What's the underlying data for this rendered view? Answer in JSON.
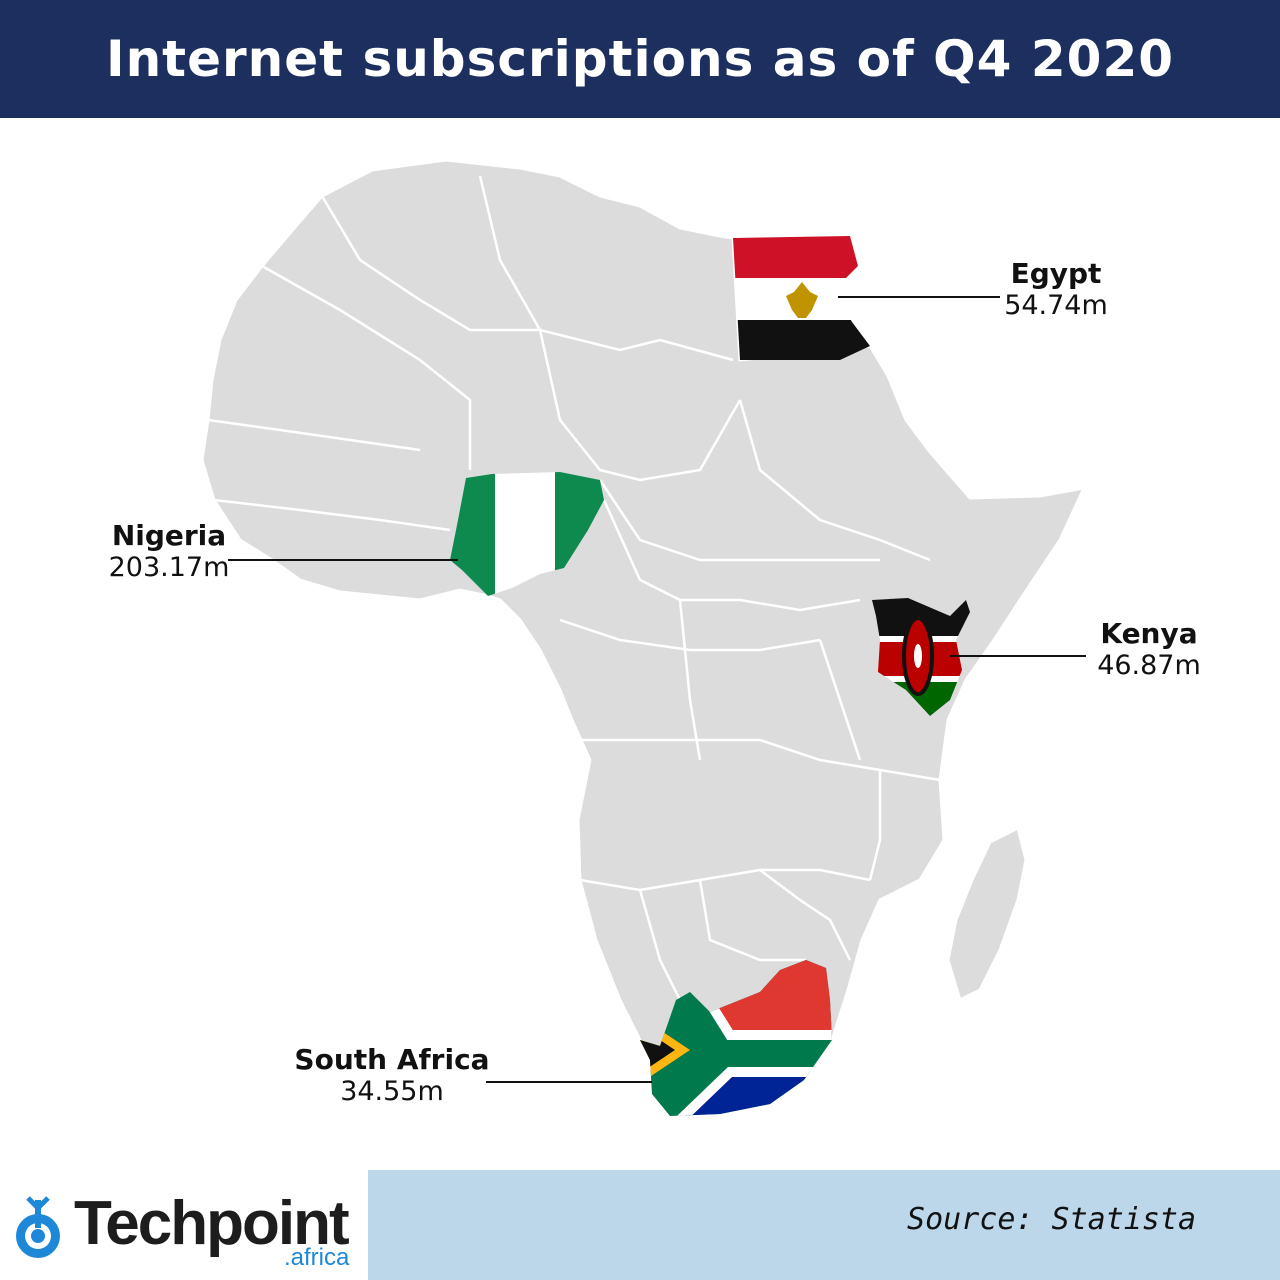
{
  "title": "Internet subscriptions as of Q4 2020",
  "countries": [
    {
      "name": "Egypt",
      "value": "54.74m"
    },
    {
      "name": "Nigeria",
      "value": "203.17m"
    },
    {
      "name": "Kenya",
      "value": "46.87m"
    },
    {
      "name": "South Africa",
      "value": "34.55m"
    }
  ],
  "source": "Source: Statista",
  "logo": {
    "word": "Techpoint",
    "sub": ".africa",
    "icon": "target-icon"
  },
  "colors": {
    "header_bg": "#1c2f5e",
    "land": "#dcdcdc",
    "footer_band": "#bdd7ea",
    "logo_blue": "#1e88d8"
  }
}
